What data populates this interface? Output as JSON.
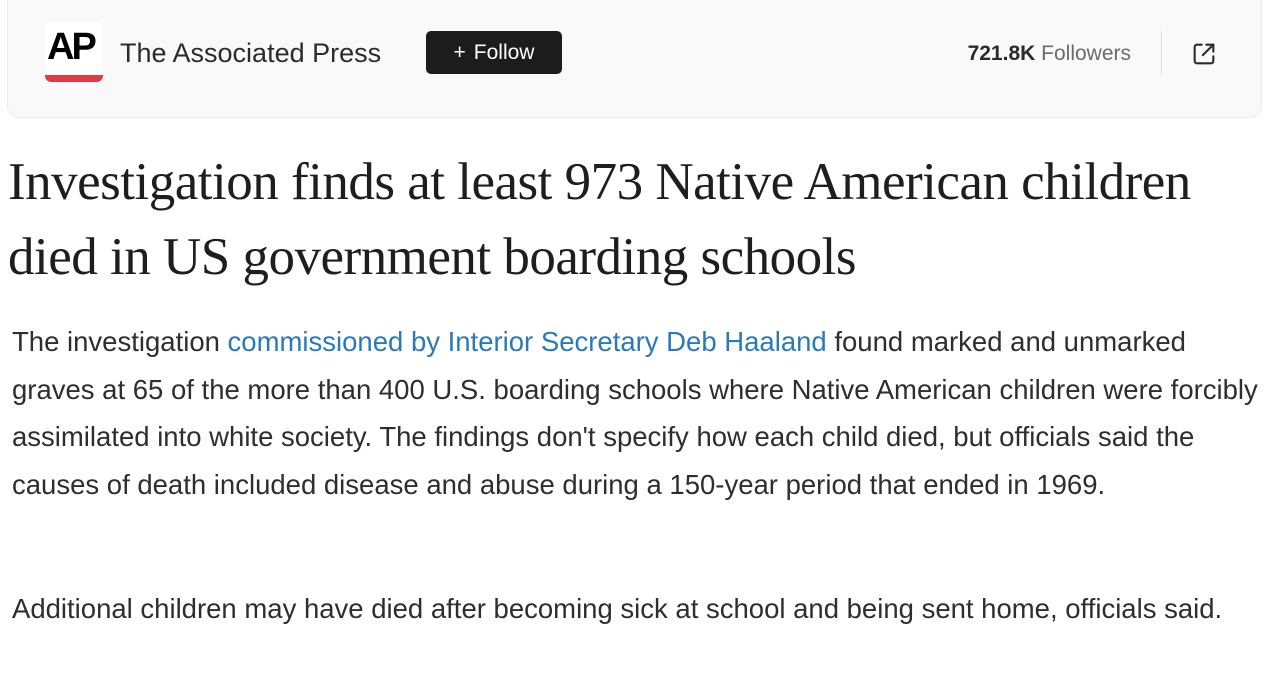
{
  "header": {
    "logo_text": "AP",
    "publisher": "The Associated Press",
    "follow_icon": "+",
    "follow_label": "Follow",
    "followers_count": "721.8K",
    "followers_label": "Followers",
    "external_icon": "external-link-icon",
    "logo_accent": "#e03a45"
  },
  "article": {
    "headline": "Investigation finds at least 973 Native American children died in US government boarding schools",
    "p1_before": "The investigation ",
    "p1_link": "commissioned by Interior Secretary Deb Haaland",
    "p1_after": " found marked and unmarked graves at 65 of the more than 400 U.S. boarding schools where Native American children were forcibly assimilated into white society. The findings don't specify how each child died, but officials said the causes of death included disease and abuse during a 150-year period that ended in 1969.",
    "p2": "Additional children may have died after becoming sick at school and being sent home, officials said.",
    "link_color": "#2a7ab5"
  }
}
